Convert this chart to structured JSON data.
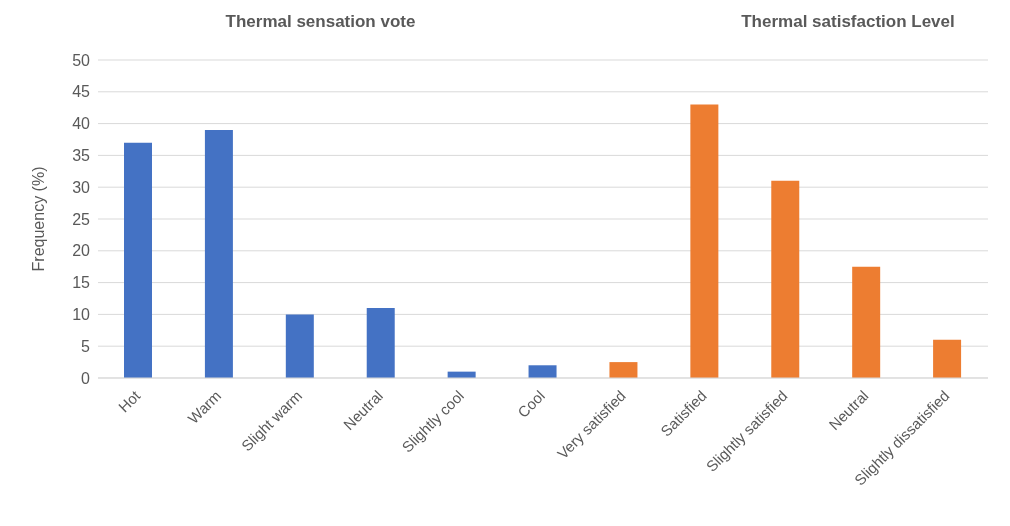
{
  "chart_data": {
    "type": "bar",
    "ylabel": "Frequency (%)",
    "annotations": [
      "Thermal sensation vote",
      "Thermal satisfaction Level"
    ],
    "categories": [
      "Hot",
      "Warm",
      "Slight warm",
      "Neutral",
      "Slightly cool",
      "Cool",
      "Very satisfied",
      "Satisfied",
      "Slightly satisfied",
      "Neutral",
      "Slightly dissatisfied"
    ],
    "values": [
      37,
      39,
      10,
      11,
      1,
      2,
      2.5,
      43,
      31,
      17.5,
      6
    ],
    "colors": [
      "#4472c4",
      "#4472c4",
      "#4472c4",
      "#4472c4",
      "#4472c4",
      "#4472c4",
      "#ed7d31",
      "#ed7d31",
      "#ed7d31",
      "#ed7d31",
      "#ed7d31"
    ],
    "ylim": [
      0,
      50
    ],
    "yticks": [
      0,
      5,
      10,
      15,
      20,
      25,
      30,
      35,
      40,
      45,
      50
    ],
    "grid": "y"
  }
}
